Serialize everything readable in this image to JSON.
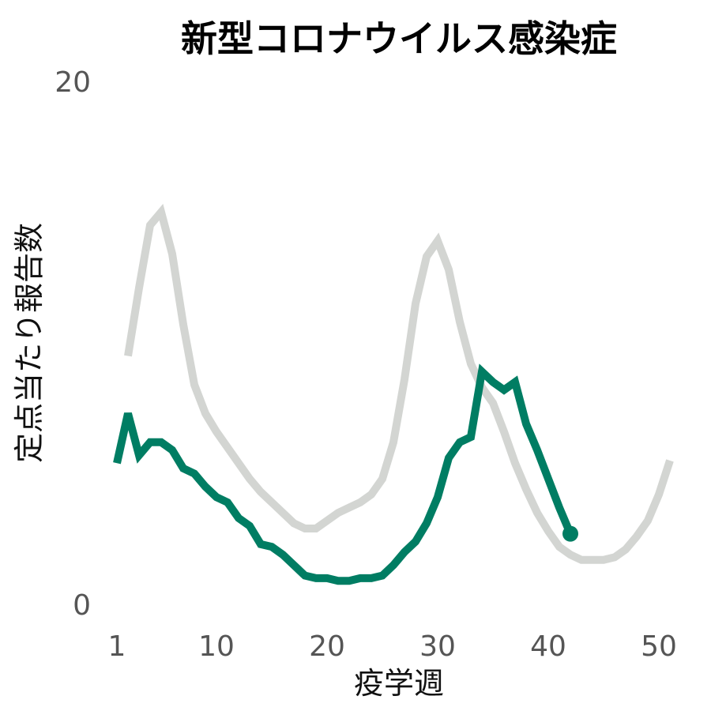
{
  "chart_data": {
    "type": "line",
    "title": "新型コロナウイルス感染症",
    "xlabel": "疫学週",
    "ylabel": "定点当たり報告数",
    "xlim": [
      1,
      51
    ],
    "ylim": [
      0,
      20
    ],
    "xticks": [
      1,
      10,
      20,
      30,
      40,
      50
    ],
    "yticks": [
      0,
      20
    ],
    "grid": false,
    "series": [
      {
        "color": "#D3D5D2",
        "x": [
          2,
          3,
          4,
          5,
          6,
          7,
          8,
          9,
          10,
          11,
          12,
          13,
          14,
          15,
          16,
          17,
          18,
          19,
          20,
          21,
          22,
          23,
          24,
          25,
          26,
          27,
          28,
          29,
          30,
          31,
          32,
          33,
          34,
          35,
          36,
          37,
          38,
          39,
          40,
          41,
          42,
          43,
          44,
          45,
          46,
          47,
          48,
          49,
          50,
          51
        ],
        "values": [
          9.5,
          12.1,
          14.5,
          15.0,
          13.4,
          10.7,
          8.4,
          7.3,
          6.6,
          6.0,
          5.4,
          4.8,
          4.3,
          3.9,
          3.5,
          3.1,
          2.9,
          2.9,
          3.2,
          3.5,
          3.7,
          3.9,
          4.2,
          4.8,
          6.2,
          8.6,
          11.5,
          13.3,
          13.9,
          12.8,
          10.8,
          9.2,
          8.3,
          7.7,
          6.6,
          5.4,
          4.4,
          3.5,
          2.8,
          2.2,
          1.9,
          1.7,
          1.7,
          1.7,
          1.8,
          2.1,
          2.6,
          3.2,
          4.2,
          5.5
        ]
      },
      {
        "color": "#007D63",
        "x": [
          1,
          2,
          3,
          4,
          5,
          6,
          7,
          8,
          9,
          10,
          11,
          12,
          13,
          14,
          15,
          16,
          17,
          18,
          19,
          20,
          21,
          22,
          23,
          24,
          25,
          26,
          27,
          28,
          29,
          30,
          31,
          32,
          33,
          34,
          35,
          36,
          37,
          38,
          39,
          40,
          41,
          42
        ],
        "values": [
          5.4,
          7.3,
          5.7,
          6.2,
          6.2,
          5.9,
          5.2,
          5.0,
          4.5,
          4.1,
          3.9,
          3.3,
          3.0,
          2.3,
          2.2,
          1.9,
          1.5,
          1.1,
          1.0,
          1.0,
          0.9,
          0.9,
          1.0,
          1.0,
          1.1,
          1.5,
          2.0,
          2.4,
          3.1,
          4.1,
          5.6,
          6.2,
          6.4,
          8.9,
          8.5,
          8.2,
          8.5,
          6.9,
          5.9,
          4.8,
          3.7,
          2.7
        ]
      }
    ]
  }
}
